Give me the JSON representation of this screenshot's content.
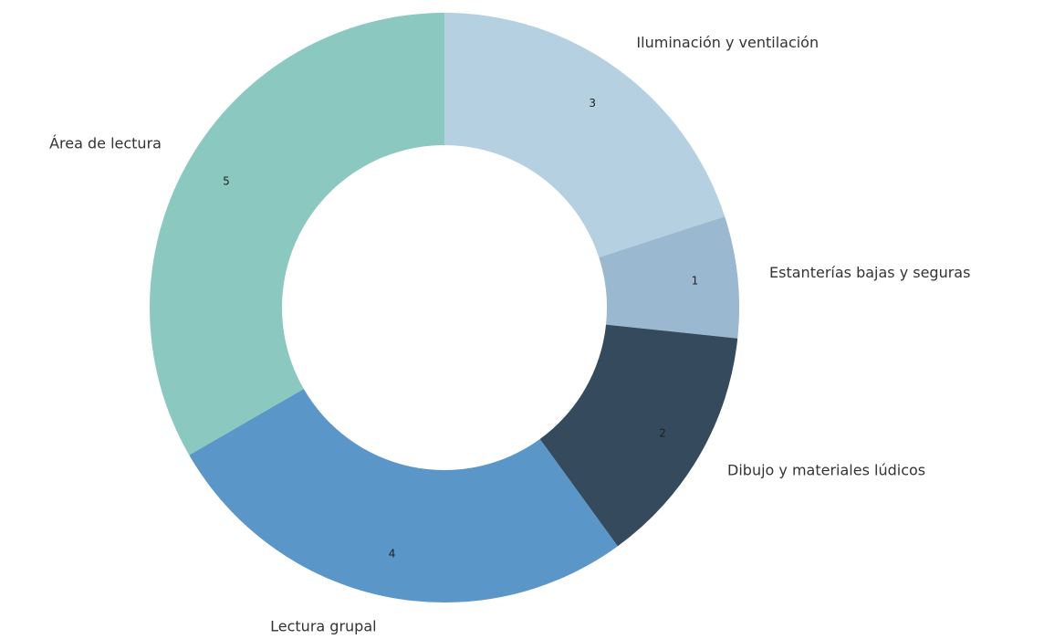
{
  "chart_data": {
    "type": "donut",
    "categories": [
      "Iluminación y ventilación",
      "Estanterías bajas y seguras",
      "Dibujo y materiales lúdicos",
      "Lectura grupal",
      "Área de lectura"
    ],
    "values": [
      3,
      1,
      2,
      4,
      5
    ],
    "colors": [
      "#b4d0e1",
      "#9ab8d0",
      "#354a5c",
      "#5a96c8",
      "#8ac8c0"
    ]
  }
}
